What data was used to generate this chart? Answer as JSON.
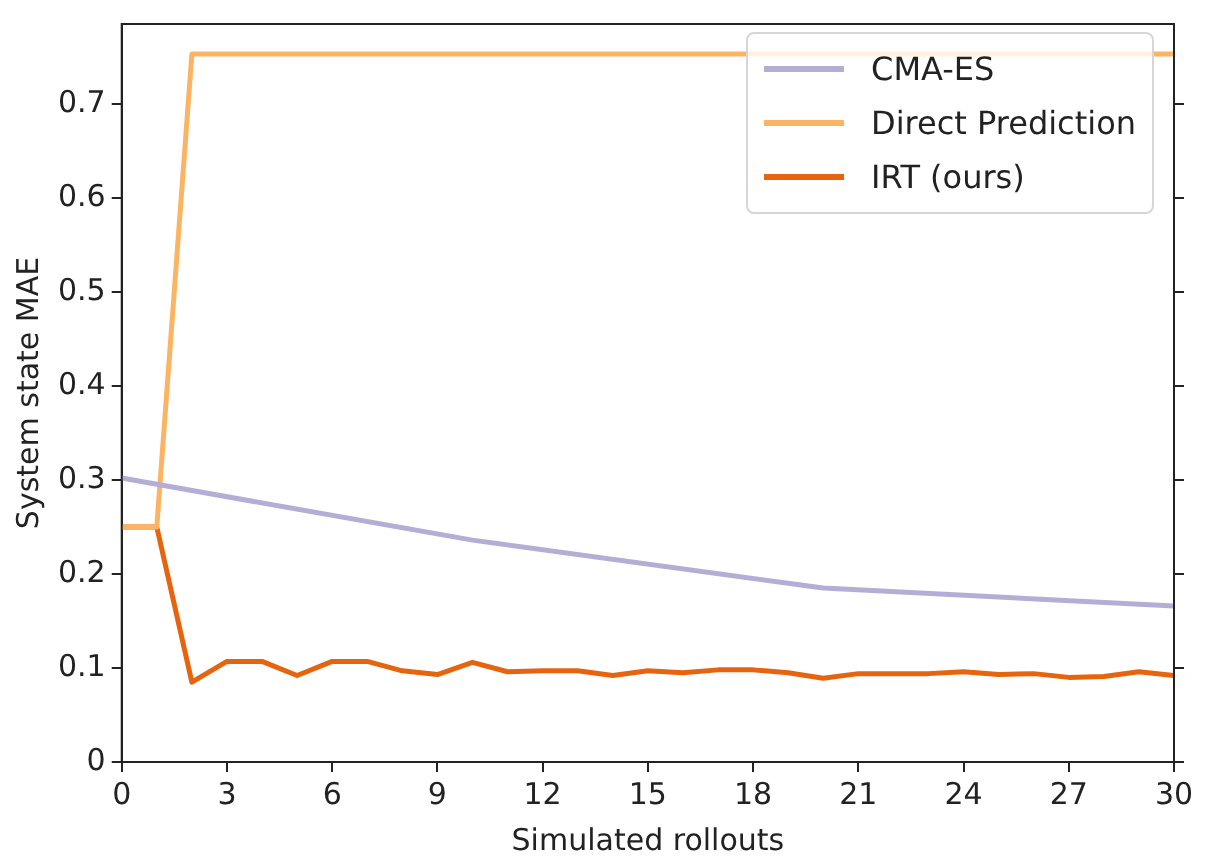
{
  "chart_data": {
    "type": "line",
    "xlabel": "Simulated rollouts",
    "ylabel": "System state MAE",
    "xlim": [
      0,
      30
    ],
    "xticks": [
      0,
      3,
      6,
      9,
      12,
      15,
      18,
      21,
      24,
      27,
      30
    ],
    "ylim": [
      0,
      0.785
    ],
    "yticks": [
      0,
      0.1,
      0.2,
      0.3,
      0.4,
      0.5,
      0.6,
      0.7
    ],
    "grid": false,
    "legend": "top right",
    "marker": "none",
    "line_style": "solid",
    "series": [
      {
        "name": "CMA-ES",
        "color": "#b4aed6",
        "x": [
          0,
          10,
          20,
          30
        ],
        "values": [
          0.302,
          0.236,
          0.185,
          0.166
        ]
      },
      {
        "name": "Direct Prediction",
        "color": "#fdb462",
        "x": [
          0,
          1,
          2,
          30
        ],
        "values": [
          0.25,
          0.25,
          0.753,
          0.753
        ]
      },
      {
        "name": "IRT (ours)",
        "color": "#e6640e",
        "x": [
          0,
          1,
          2,
          3,
          4,
          5,
          6,
          7,
          8,
          9,
          10,
          11,
          12,
          13,
          14,
          15,
          16,
          17,
          18,
          19,
          20,
          21,
          22,
          23,
          24,
          25,
          26,
          27,
          28,
          29,
          30
        ],
        "values": [
          0.25,
          0.25,
          0.085,
          0.107,
          0.107,
          0.092,
          0.107,
          0.107,
          0.097,
          0.093,
          0.106,
          0.096,
          0.097,
          0.097,
          0.092,
          0.097,
          0.095,
          0.098,
          0.098,
          0.095,
          0.089,
          0.094,
          0.094,
          0.094,
          0.096,
          0.093,
          0.094,
          0.09,
          0.091,
          0.096,
          0.092
        ]
      }
    ]
  }
}
